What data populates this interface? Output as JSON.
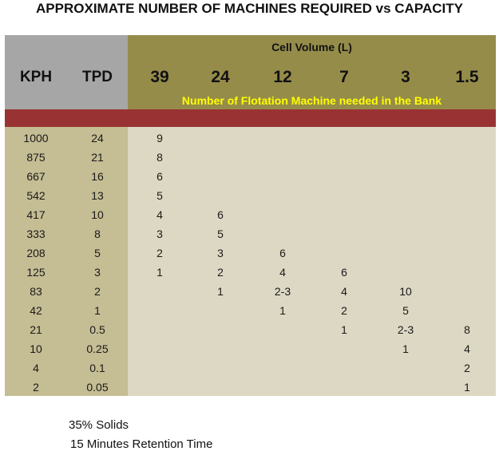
{
  "title": "APPROXIMATE NUMBER OF MACHINES REQUIRED vs CAPACITY",
  "header": {
    "kph": "KPH",
    "tpd": "TPD",
    "cell_volume_label": "Cell Volume (L)",
    "volumes": [
      "39",
      "24",
      "12",
      "7",
      "3",
      "1.5"
    ],
    "subtitle": "Number of Flotation Machine needed in the Bank"
  },
  "rows": [
    {
      "kph": "1000",
      "tpd": "24",
      "cells": [
        "9",
        "",
        "",
        "",
        "",
        ""
      ]
    },
    {
      "kph": "875",
      "tpd": "21",
      "cells": [
        "8",
        "",
        "",
        "",
        "",
        ""
      ]
    },
    {
      "kph": "667",
      "tpd": "16",
      "cells": [
        "6",
        "",
        "",
        "",
        "",
        ""
      ]
    },
    {
      "kph": "542",
      "tpd": "13",
      "cells": [
        "5",
        "",
        "",
        "",
        "",
        ""
      ]
    },
    {
      "kph": "417",
      "tpd": "10",
      "cells": [
        "4",
        "6",
        "",
        "",
        "",
        ""
      ]
    },
    {
      "kph": "333",
      "tpd": "8",
      "cells": [
        "3",
        "5",
        "",
        "",
        "",
        ""
      ]
    },
    {
      "kph": "208",
      "tpd": "5",
      "cells": [
        "2",
        "3",
        "6",
        "",
        "",
        ""
      ]
    },
    {
      "kph": "125",
      "tpd": "3",
      "cells": [
        "1",
        "2",
        "4",
        "6",
        "",
        ""
      ]
    },
    {
      "kph": "83",
      "tpd": "2",
      "cells": [
        "",
        "1",
        "2-3",
        "4",
        "10",
        ""
      ]
    },
    {
      "kph": "42",
      "tpd": "1",
      "cells": [
        "",
        "",
        "1",
        "2",
        "5",
        ""
      ]
    },
    {
      "kph": "21",
      "tpd": "0.5",
      "cells": [
        "",
        "",
        "",
        "1",
        "2-3",
        "8"
      ]
    },
    {
      "kph": "10",
      "tpd": "0.25",
      "cells": [
        "",
        "",
        "",
        "",
        "1",
        "4"
      ]
    },
    {
      "kph": "4",
      "tpd": "0.1",
      "cells": [
        "",
        "",
        "",
        "",
        "",
        "2"
      ]
    },
    {
      "kph": "2",
      "tpd": "0.05",
      "cells": [
        "",
        "",
        "",
        "",
        "",
        "1"
      ]
    }
  ],
  "notes": {
    "solids": "35% Solids",
    "retention": "15 Minutes Retention Time"
  },
  "colors": {
    "header_left": "#a6a6a6",
    "header_right": "#968c4a",
    "red_band": "#993333",
    "body_left": "#c5bd93",
    "body_right": "#ddd8c3",
    "subtitle_text": "#ffff00"
  }
}
